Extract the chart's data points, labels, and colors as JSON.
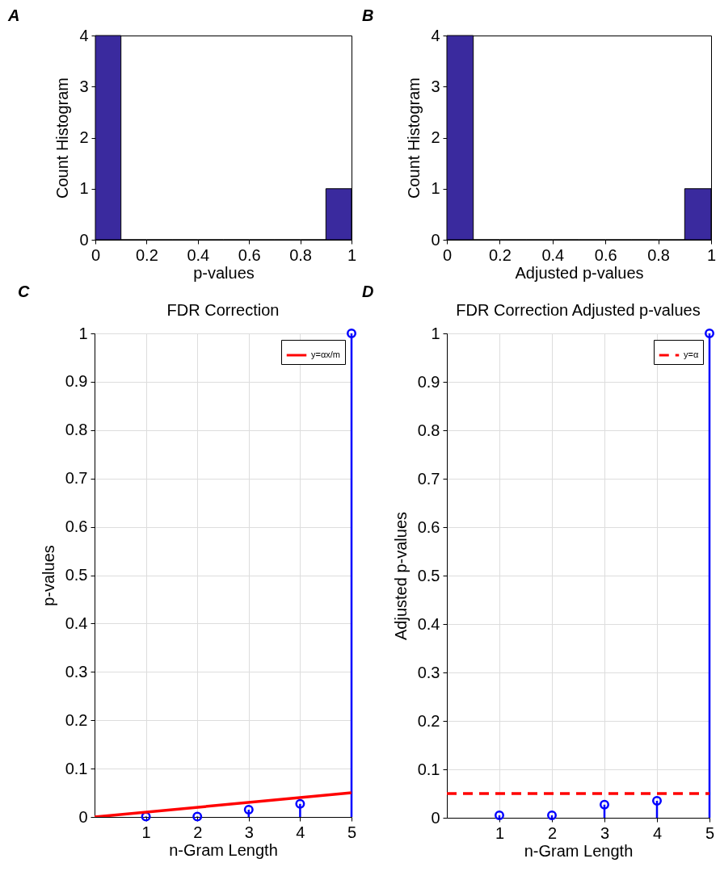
{
  "chart_data": [
    {
      "type": "histogram",
      "annotations": [
        "A"
      ],
      "xlabel": "p-values",
      "ylabel": "Count Histogram",
      "bins": [
        0,
        0.1,
        0.2,
        0.3,
        0.4,
        0.5,
        0.6,
        0.7,
        0.8,
        0.9,
        1
      ],
      "values": [
        4,
        0,
        0,
        0,
        0,
        0,
        0,
        0,
        0,
        1
      ],
      "color": "#3a2a9e",
      "xlim": [
        0,
        1
      ],
      "xticks": [
        0,
        0.2,
        0.4,
        0.6,
        0.8,
        1
      ],
      "ylim": [
        0,
        4
      ],
      "yticks": [
        0,
        1,
        2,
        3,
        4
      ]
    },
    {
      "type": "histogram",
      "annotations": [
        "B"
      ],
      "xlabel": "Adjusted p-values",
      "ylabel": "Count Histogram",
      "bins": [
        0,
        0.1,
        0.2,
        0.3,
        0.4,
        0.5,
        0.6,
        0.7,
        0.8,
        0.9,
        1
      ],
      "values": [
        4,
        0,
        0,
        0,
        0,
        0,
        0,
        0,
        0,
        1
      ],
      "color": "#3a2a9e",
      "xlim": [
        0,
        1
      ],
      "xticks": [
        0,
        0.2,
        0.4,
        0.6,
        0.8,
        1
      ],
      "ylim": [
        0,
        4
      ],
      "yticks": [
        0,
        1,
        2,
        3,
        4
      ]
    },
    {
      "type": "lollipop",
      "title": "FDR Correction",
      "annotations": [
        "C"
      ],
      "xlabel": "n-Gram Length",
      "ylabel": "p-values",
      "xlim": [
        0,
        5
      ],
      "xticks": [
        1,
        2,
        3,
        4,
        5
      ],
      "ylim": [
        0,
        1
      ],
      "yticks": [
        0,
        0.1,
        0.2,
        0.3,
        0.4,
        0.5,
        0.6,
        0.7,
        0.8,
        0.9,
        1
      ],
      "grid": true,
      "legend": "top right",
      "series": [
        {
          "color": "#0000ff",
          "marker": "circle",
          "x": [
            1,
            2,
            3,
            4,
            5
          ],
          "values": [
            0.001,
            0.001,
            0.015,
            0.027,
            1
          ]
        },
        {
          "type": "line",
          "name": "y=αx/m",
          "color": "#ff0000",
          "line_style": "solid",
          "x": [
            0,
            5
          ],
          "values": [
            0,
            0.05
          ]
        }
      ]
    },
    {
      "type": "lollipop",
      "title": "FDR Correction Adjusted p-values",
      "annotations": [
        "D"
      ],
      "xlabel": "n-Gram Length",
      "ylabel": "Adjusted p-values",
      "xlim": [
        0,
        5
      ],
      "xticks": [
        1,
        2,
        3,
        4,
        5
      ],
      "ylim": [
        0,
        1
      ],
      "yticks": [
        0,
        0.1,
        0.2,
        0.3,
        0.4,
        0.5,
        0.6,
        0.7,
        0.8,
        0.9,
        1
      ],
      "grid": true,
      "legend": "top right",
      "series": [
        {
          "color": "#0000ff",
          "marker": "circle",
          "x": [
            1,
            2,
            3,
            4,
            5
          ],
          "values": [
            0.005,
            0.005,
            0.027,
            0.035,
            1
          ]
        },
        {
          "type": "line",
          "name": "y=α",
          "color": "#ff0000",
          "line_style": "dashed",
          "x": [
            0,
            5
          ],
          "values": [
            0.05,
            0.05
          ]
        }
      ]
    }
  ]
}
